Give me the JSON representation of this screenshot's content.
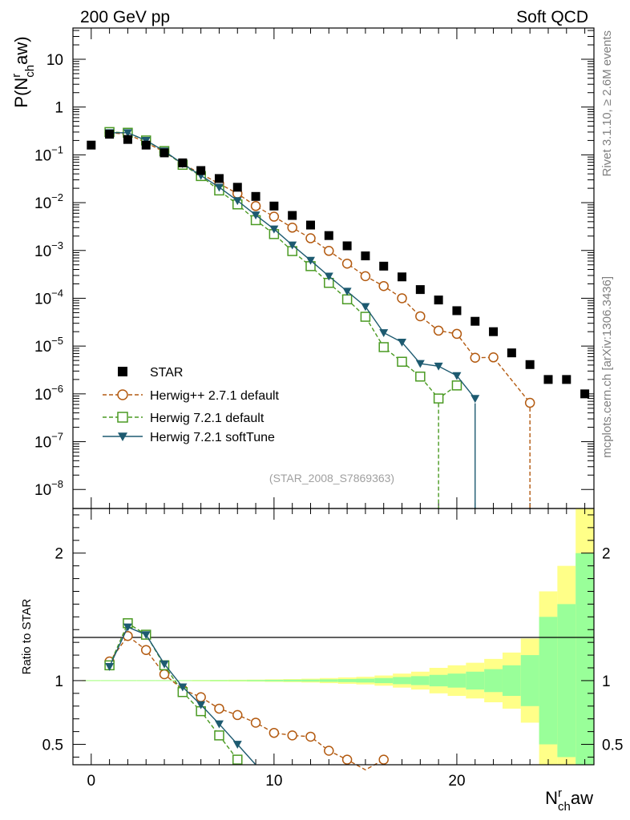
{
  "header": {
    "left": "200 GeV pp",
    "right": "Soft QCD"
  },
  "side_labels": {
    "rivet": "Rivet 3.1.10, ≥ 2.6M events",
    "mcplots": "mcplots.cern.ch [arXiv:1306.3436]"
  },
  "reference_label": "(STAR_2008_S7869363)",
  "chart_data": [
    {
      "type": "scatter",
      "panel": "main",
      "ylabel": "P(N^r_ch aw)",
      "yscale": "log",
      "ylim": [
        4e-09,
        45
      ],
      "xlim": [
        -1,
        27.5
      ],
      "y_ticks": [
        {
          "value": 10,
          "mant": "10",
          "exp": ""
        },
        {
          "value": 1,
          "mant": "1",
          "exp": ""
        },
        {
          "value": 0.1,
          "mant": "10",
          "exp": "−1"
        },
        {
          "value": 0.01,
          "mant": "10",
          "exp": "−2"
        },
        {
          "value": 0.001,
          "mant": "10",
          "exp": "−3"
        },
        {
          "value": 0.0001,
          "mant": "10",
          "exp": "−4"
        },
        {
          "value": 1e-05,
          "mant": "10",
          "exp": "−5"
        },
        {
          "value": 1e-06,
          "mant": "10",
          "exp": "−6"
        },
        {
          "value": 1e-07,
          "mant": "10",
          "exp": "−7"
        },
        {
          "value": 1e-08,
          "mant": "10",
          "exp": "−8"
        }
      ],
      "legend_position": "bottom-left",
      "series": [
        {
          "name": "STAR",
          "color": "#000000",
          "marker": "square-filled",
          "line": "none",
          "x": [
            0,
            1,
            2,
            3,
            4,
            5,
            6,
            7,
            8,
            9,
            10,
            11,
            12,
            13,
            14,
            15,
            16,
            17,
            18,
            19,
            20,
            21,
            22,
            23,
            24,
            25,
            26,
            27
          ],
          "y": [
            0.16,
            0.27,
            0.21,
            0.16,
            0.11,
            0.068,
            0.047,
            0.032,
            0.021,
            0.0135,
            0.0085,
            0.0054,
            0.0034,
            0.00205,
            0.00125,
            0.00077,
            0.00047,
            0.00028,
            0.000152,
            9.2e-05,
            5.5e-05,
            3.3e-05,
            2e-05,
            7.2e-06,
            4.1e-06,
            2e-06,
            2e-06,
            1e-06
          ]
        },
        {
          "name": "Herwig++ 2.7.1 default",
          "color": "#b35a10",
          "marker": "circle-open",
          "line": "dashed",
          "x": [
            1,
            2,
            3,
            4,
            5,
            6,
            7,
            8,
            9,
            10,
            11,
            12,
            13,
            14,
            15,
            16,
            17,
            18,
            19,
            20,
            21,
            22,
            24
          ],
          "y": [
            0.29,
            0.27,
            0.18,
            0.115,
            0.065,
            0.04,
            0.025,
            0.0155,
            0.0085,
            0.0051,
            0.003,
            0.0018,
            0.00098,
            0.00053,
            0.00029,
            0.00018,
            0.0001,
            4.2e-05,
            2.1e-05,
            1.8e-05,
            5.7e-06,
            5.8e-06,
            6.5e-07
          ]
        },
        {
          "name": "Herwig 7.2.1 default",
          "color": "#4a9a22",
          "marker": "square-open",
          "line": "dashed",
          "x": [
            1,
            2,
            3,
            4,
            5,
            6,
            7,
            8,
            9,
            10,
            11,
            12,
            13,
            14,
            15,
            16,
            17,
            18,
            19,
            20
          ],
          "y": [
            0.3,
            0.29,
            0.2,
            0.12,
            0.062,
            0.036,
            0.018,
            0.0092,
            0.0043,
            0.0022,
            0.00097,
            0.00047,
            0.00021,
            9.5e-05,
            4.1e-05,
            9.5e-06,
            4.7e-06,
            2.3e-06,
            8e-07,
            1.5e-06
          ]
        },
        {
          "name": "Herwig 7.2.1 softTune",
          "color": "#1d5a70",
          "marker": "triangle-down-filled",
          "line": "solid",
          "x": [
            1,
            2,
            3,
            4,
            5,
            6,
            7,
            8,
            9,
            10,
            11,
            12,
            13,
            14,
            15,
            16,
            17,
            18,
            19,
            20,
            21
          ],
          "y": [
            0.29,
            0.29,
            0.2,
            0.12,
            0.065,
            0.037,
            0.021,
            0.011,
            0.0055,
            0.0028,
            0.0013,
            0.00062,
            0.00029,
            0.00014,
            6.7e-05,
            1.9e-05,
            1.2e-05,
            4.3e-06,
            3.8e-06,
            2.4e-06,
            8e-07
          ]
        }
      ]
    },
    {
      "type": "line",
      "panel": "ratio",
      "ylabel": "Ratio to STAR",
      "xlabel": "N^r_ch aw",
      "ylim": [
        0.34,
        2.35
      ],
      "xlim": [
        -1,
        27.5
      ],
      "x_ticks": [
        0,
        10,
        20
      ],
      "y_ticks": [
        {
          "value": 0.5,
          "label": "0.5"
        },
        {
          "value": 1,
          "label": "1"
        },
        {
          "value": 2,
          "label": "2"
        }
      ],
      "band_colors": {
        "inner": "#99ff99",
        "outer": "#ffff88"
      },
      "bands": {
        "x": [
          0,
          1,
          2,
          3,
          4,
          5,
          6,
          7,
          8,
          9,
          10,
          11,
          12,
          13,
          14,
          15,
          16,
          17,
          18,
          19,
          20,
          21,
          22,
          23,
          24,
          25,
          26,
          27
        ],
        "inner": [
          0.003,
          0.003,
          0.003,
          0.003,
          0.003,
          0.003,
          0.003,
          0.004,
          0.004,
          0.005,
          0.006,
          0.007,
          0.008,
          0.01,
          0.012,
          0.015,
          0.02,
          0.028,
          0.035,
          0.045,
          0.055,
          0.07,
          0.09,
          0.12,
          0.2,
          0.5,
          0.6,
          1.0
        ],
        "outer": [
          0.004,
          0.004,
          0.004,
          0.004,
          0.004,
          0.004,
          0.005,
          0.006,
          0.007,
          0.008,
          0.01,
          0.012,
          0.015,
          0.02,
          0.025,
          0.03,
          0.04,
          0.055,
          0.07,
          0.1,
          0.12,
          0.14,
          0.17,
          0.22,
          0.33,
          0.7,
          0.9,
          1.4
        ]
      },
      "series": [
        {
          "name": "Herwig++ 2.7.1 default",
          "x": [
            1,
            2,
            3,
            4,
            5,
            6,
            7,
            8,
            9,
            10,
            11,
            12,
            13,
            14,
            15,
            16
          ],
          "y": [
            1.15,
            1.35,
            1.24,
            1.05,
            0.93,
            0.87,
            0.78,
            0.73,
            0.67,
            0.59,
            0.57,
            0.56,
            0.45,
            0.38,
            0.3,
            0.38
          ]
        },
        {
          "name": "Herwig 7.2.1 default",
          "x": [
            1,
            2,
            3,
            4,
            5,
            6,
            7,
            8
          ],
          "y": [
            1.12,
            1.45,
            1.36,
            1.12,
            0.91,
            0.76,
            0.57,
            0.38
          ]
        },
        {
          "name": "Herwig 7.2.1 softTune",
          "x": [
            1,
            2,
            3,
            4,
            5,
            6,
            7,
            8,
            9
          ],
          "y": [
            1.11,
            1.42,
            1.36,
            1.13,
            0.95,
            0.81,
            0.66,
            0.5,
            0.34
          ]
        }
      ]
    }
  ]
}
